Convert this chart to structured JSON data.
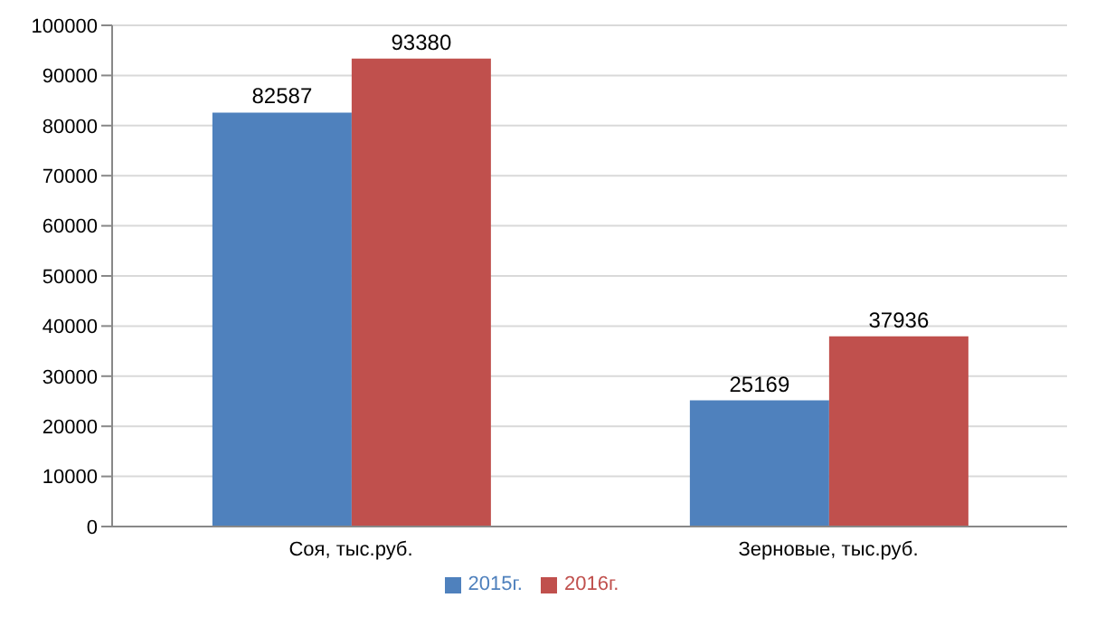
{
  "chart_data": {
    "type": "bar",
    "categories": [
      "Соя, тыс.руб.",
      "Зерновые, тыс.руб."
    ],
    "series": [
      {
        "name": "2015г.",
        "color": "#4f81bd",
        "values": [
          82587,
          25169
        ]
      },
      {
        "name": "2016г.",
        "color": "#c0504d",
        "values": [
          93380,
          37936
        ]
      }
    ],
    "ylim": [
      0,
      100000
    ],
    "yticks": [
      0,
      10000,
      20000,
      30000,
      40000,
      50000,
      60000,
      70000,
      80000,
      90000,
      100000
    ],
    "grid": "y",
    "legend": "bottom",
    "data_labels": true
  }
}
